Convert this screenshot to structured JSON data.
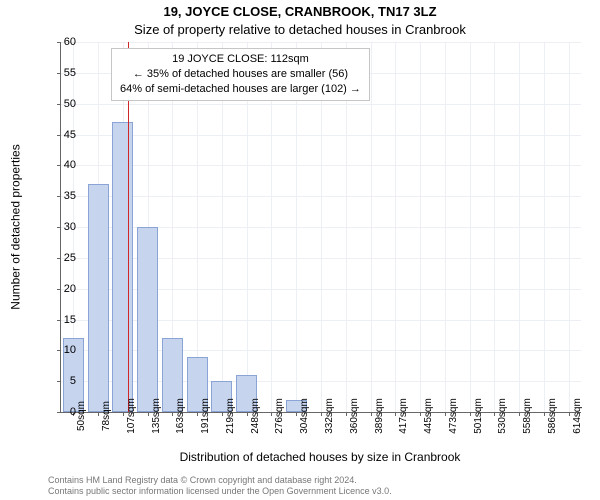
{
  "title_main": "19, JOYCE CLOSE, CRANBROOK, TN17 3LZ",
  "title_sub": "Size of property relative to detached houses in Cranbrook",
  "y_axis_label": "Number of detached properties",
  "x_axis_label": "Distribution of detached houses by size in Cranbrook",
  "footer_line1": "Contains HM Land Registry data © Crown copyright and database right 2024.",
  "footer_line2": "Contains public sector information licensed under the Open Government Licence v3.0.",
  "callout": {
    "line1": "19 JOYCE CLOSE: 112sqm",
    "line2": "← 35% of detached houses are smaller (56)",
    "line3": "64% of semi-detached houses are larger (102) →"
  },
  "chart": {
    "type": "bar",
    "background_color": "#ffffff",
    "grid_color": "#eceff4",
    "bar_fill": "#c6d4ee",
    "bar_border": "#8aa4d6",
    "axis_color": "#666666",
    "ref_line_color": "#d02828",
    "ref_line_x_value": 112,
    "ymax": 60,
    "ytick_step": 5,
    "x_categories": [
      "50sqm",
      "78sqm",
      "107sqm",
      "135sqm",
      "163sqm",
      "191sqm",
      "219sqm",
      "248sqm",
      "276sqm",
      "304sqm",
      "332sqm",
      "360sqm",
      "389sqm",
      "417sqm",
      "445sqm",
      "473sqm",
      "501sqm",
      "530sqm",
      "558sqm",
      "586sqm",
      "614sqm"
    ],
    "x_numeric": [
      50,
      78,
      107,
      135,
      163,
      191,
      219,
      248,
      276,
      304,
      332,
      360,
      389,
      417,
      445,
      473,
      501,
      530,
      558,
      586,
      614
    ],
    "values": [
      12,
      37,
      47,
      30,
      12,
      9,
      5,
      6,
      0,
      2,
      0,
      0,
      0,
      0,
      0,
      0,
      0,
      0,
      0,
      0,
      0
    ],
    "title_fontsize": 13,
    "label_fontsize": 12,
    "tick_fontsize": 11,
    "callout_fontsize": 11
  }
}
